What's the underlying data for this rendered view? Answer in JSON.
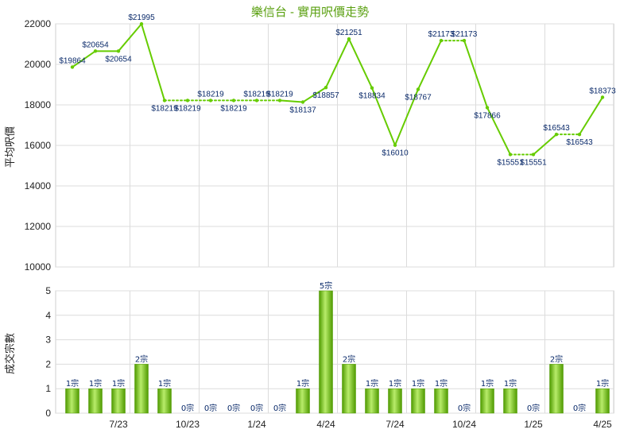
{
  "chart_data": [
    {
      "type": "line",
      "title": "樂信台 - 實用呎價走勢",
      "ylabel": "平均呎價",
      "ylim": [
        10000,
        22000
      ],
      "yticks": [
        10000,
        12000,
        14000,
        16000,
        18000,
        20000,
        22000
      ],
      "xtick_labels": [
        "7/23",
        "10/23",
        "1/24",
        "4/24",
        "7/24",
        "10/24",
        "1/25",
        "4/25"
      ],
      "color": "#66cc00",
      "points": [
        {
          "label": "$19864",
          "value": 19864,
          "dotted_after": false
        },
        {
          "label": "$20654",
          "value": 20654,
          "dotted_after": false
        },
        {
          "label": "$20654",
          "value": 20654,
          "dotted_after": false
        },
        {
          "label": "$21995",
          "value": 21995,
          "dotted_after": false
        },
        {
          "label": "$18219",
          "value": 18219,
          "dotted_after": true
        },
        {
          "label": "$18219",
          "value": 18219,
          "dotted_after": true
        },
        {
          "label": "$18219",
          "value": 18219,
          "dotted_after": true
        },
        {
          "label": "$18219",
          "value": 18219,
          "dotted_after": true
        },
        {
          "label": "$18219",
          "value": 18219,
          "dotted_after": true
        },
        {
          "label": "$18219",
          "value": 18219,
          "dotted_after": false
        },
        {
          "label": "$18137",
          "value": 18137,
          "dotted_after": false
        },
        {
          "label": "$18857",
          "value": 18857,
          "dotted_after": false
        },
        {
          "label": "$21251",
          "value": 21251,
          "dotted_after": false
        },
        {
          "label": "$18834",
          "value": 18834,
          "dotted_after": false
        },
        {
          "label": "$16010",
          "value": 16010,
          "dotted_after": false
        },
        {
          "label": "$18767",
          "value": 18767,
          "dotted_after": false
        },
        {
          "label": "$21173",
          "value": 21173,
          "dotted_after": true
        },
        {
          "label": "$21173",
          "value": 21173,
          "dotted_after": false
        },
        {
          "label": "$17866",
          "value": 17866,
          "dotted_after": false
        },
        {
          "label": "$15551",
          "value": 15551,
          "dotted_after": true
        },
        {
          "label": "$15551",
          "value": 15551,
          "dotted_after": false
        },
        {
          "label": "$16543",
          "value": 16543,
          "dotted_after": true
        },
        {
          "label": "$16543",
          "value": 16543,
          "dotted_after": false
        },
        {
          "label": "$18373",
          "value": 18373,
          "dotted_after": false
        }
      ]
    },
    {
      "type": "bar",
      "ylabel": "成交宗數",
      "ylim": [
        0,
        5
      ],
      "yticks": [
        0,
        1,
        2,
        3,
        4,
        5
      ],
      "xtick_labels": [
        "7/23",
        "10/23",
        "1/24",
        "4/24",
        "7/24",
        "10/24",
        "1/25",
        "4/25"
      ],
      "color": "#66bb00",
      "values": [
        1,
        1,
        1,
        2,
        1,
        0,
        0,
        0,
        0,
        0,
        1,
        5,
        2,
        1,
        1,
        1,
        1,
        0,
        1,
        1,
        0,
        2,
        0,
        1
      ],
      "labels": [
        "1宗",
        "1宗",
        "1宗",
        "2宗",
        "1宗",
        "0宗",
        "0宗",
        "0宗",
        "0宗",
        "0宗",
        "1宗",
        "5宗",
        "2宗",
        "1宗",
        "1宗",
        "1宗",
        "1宗",
        "0宗",
        "1宗",
        "1宗",
        "0宗",
        "2宗",
        "0宗",
        "1宗"
      ]
    }
  ]
}
